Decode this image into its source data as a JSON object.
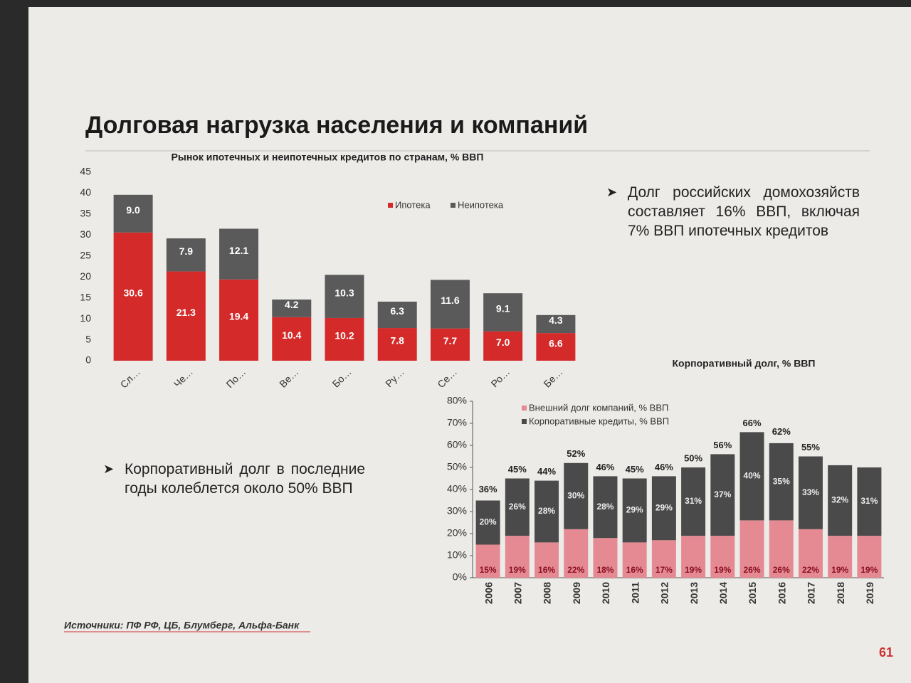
{
  "title": "Долговая нагрузка населения и компаний",
  "bullets": [
    "Долг российских домохозяйств составляет 16% ВВП, включая 7% ВВП ипотечных кредитов",
    "Корпоративный долг в последние годы колеблется около 50% ВВП"
  ],
  "source": "Источники: ПФ РФ, ЦБ, Блумберг, Альфа-Банк",
  "page_number": "61",
  "chart_data": [
    {
      "type": "stacked_bar",
      "title": "Рынок ипотечных и неипотечных кредитов по странам, % ВВП",
      "categories": [
        "Сл…",
        "Че…",
        "По…",
        "Ве…",
        "Бо…",
        "Ру…",
        "Се…",
        "Ро…",
        "Бе…"
      ],
      "series": [
        {
          "name": "Ипотека",
          "color": "#d42a2a",
          "values": [
            30.6,
            21.3,
            19.4,
            10.4,
            10.2,
            7.8,
            7.7,
            7.0,
            6.6
          ],
          "value_labels": [
            "30.6",
            "21.3",
            "19.4",
            "10.4",
            "10.2",
            "7.8",
            "7.7",
            "7.0",
            "6.6"
          ]
        },
        {
          "name": "Неипотека",
          "color": "#5a5a5a",
          "values": [
            9.0,
            7.9,
            12.1,
            4.2,
            10.3,
            6.3,
            11.6,
            9.1,
            4.3
          ],
          "value_labels": [
            "9.0",
            "7.9",
            "12.1",
            "4.2",
            "10.3",
            "6.3",
            "11.6",
            "9.1",
            "4.3"
          ]
        }
      ],
      "ylim": [
        0,
        45
      ],
      "yticks": [
        0,
        5,
        10,
        15,
        20,
        25,
        30,
        35,
        40,
        45
      ]
    },
    {
      "type": "stacked_bar",
      "title": "Корпоративный долг, % ВВП",
      "categories": [
        "2006",
        "2007",
        "2008",
        "2009",
        "2010",
        "2011",
        "2012",
        "2013",
        "2014",
        "2015",
        "2016",
        "2017",
        "2018",
        "2019"
      ],
      "series": [
        {
          "name": "Внешний долг компаний, % ВВП",
          "color": "#e58a93",
          "values": [
            15,
            19,
            16,
            22,
            18,
            16,
            17,
            19,
            19,
            26,
            26,
            22,
            19,
            19
          ],
          "value_labels": [
            "15%",
            "19%",
            "16%",
            "22%",
            "18%",
            "16%",
            "17%",
            "19%",
            "19%",
            "26%",
            "26%",
            "22%",
            "19%",
            "19%"
          ]
        },
        {
          "name": "Корпоративные кредиты, % ВВП",
          "color": "#4a4a4a",
          "values": [
            20,
            26,
            28,
            30,
            28,
            29,
            29,
            31,
            37,
            40,
            35,
            33,
            32,
            31
          ],
          "value_labels": [
            "20%",
            "26%",
            "28%",
            "30%",
            "28%",
            "29%",
            "29%",
            "31%",
            "37%",
            "40%",
            "35%",
            "33%",
            "32%",
            "31%"
          ]
        }
      ],
      "totals": {
        "values": [
          36,
          45,
          44,
          52,
          46,
          45,
          46,
          50,
          56,
          66,
          62,
          55,
          null,
          null
        ],
        "value_labels": [
          "36%",
          "45%",
          "44%",
          "52%",
          "46%",
          "45%",
          "46%",
          "50%",
          "56%",
          "66%",
          "62%",
          "55%",
          null,
          null
        ]
      },
      "ylim": [
        0,
        80
      ],
      "yticks": [
        {
          "value": 0,
          "label": "0%"
        },
        {
          "value": 10,
          "label": "10%"
        },
        {
          "value": 20,
          "label": "20%"
        },
        {
          "value": 30,
          "label": "30%"
        },
        {
          "value": 40,
          "label": "40%"
        },
        {
          "value": 50,
          "label": "50%"
        },
        {
          "value": 60,
          "label": "60%"
        },
        {
          "value": 70,
          "label": "70%"
        },
        {
          "value": 80,
          "label": "80%"
        }
      ]
    }
  ]
}
